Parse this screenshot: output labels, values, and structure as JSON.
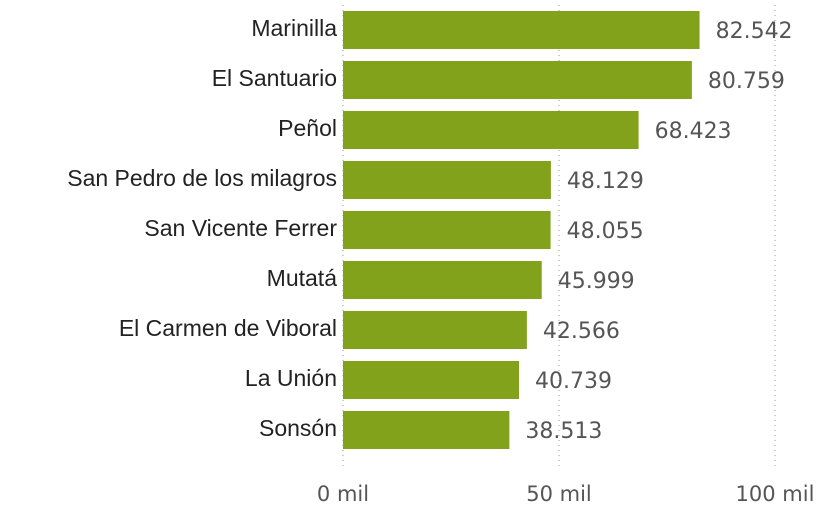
{
  "chart_data": {
    "type": "bar",
    "orientation": "horizontal",
    "categories": [
      "Marinilla",
      "El Santuario",
      "Peñol",
      "San Pedro de los milagros",
      "San Vicente Ferrer",
      "Mutatá",
      "El Carmen de Viboral",
      "La Unión",
      "Sonsón"
    ],
    "values": [
      82542,
      80759,
      68423,
      48129,
      48055,
      45999,
      42566,
      40739,
      38513
    ],
    "value_labels": [
      "82.542",
      "80.759",
      "68.423",
      "48.129",
      "48.055",
      "45.999",
      "42.566",
      "40.739",
      "38.513"
    ],
    "color": "#83a21b",
    "xlim": [
      0,
      100000
    ],
    "xticks": [
      {
        "value": 0,
        "label": "0 mil"
      },
      {
        "value": 50000,
        "label": "50 mil"
      },
      {
        "value": 100000,
        "label": "100 mil"
      }
    ],
    "grid": true
  }
}
